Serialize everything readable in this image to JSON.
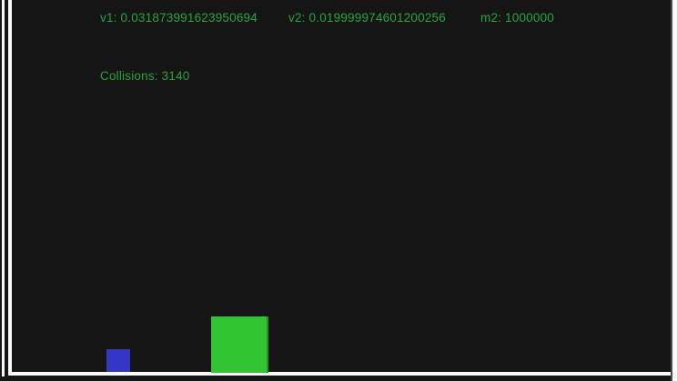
{
  "hud": {
    "v1": "v1: 0.031873991623950694",
    "v2": "v2: 0.019999974601200256",
    "m2": "m2: 1000000",
    "collisions": "Collisions: 3140"
  },
  "values": {
    "v1": 0.031873991623950694,
    "v2": 0.019999974601200256,
    "m2": 1000000,
    "collisions": 3140
  },
  "colors": {
    "hud_text": "#28a53c",
    "small_block": "#3535c5",
    "large_block": "#32c432",
    "canvas_background": "#151515",
    "wall_line": "#fafafa"
  }
}
